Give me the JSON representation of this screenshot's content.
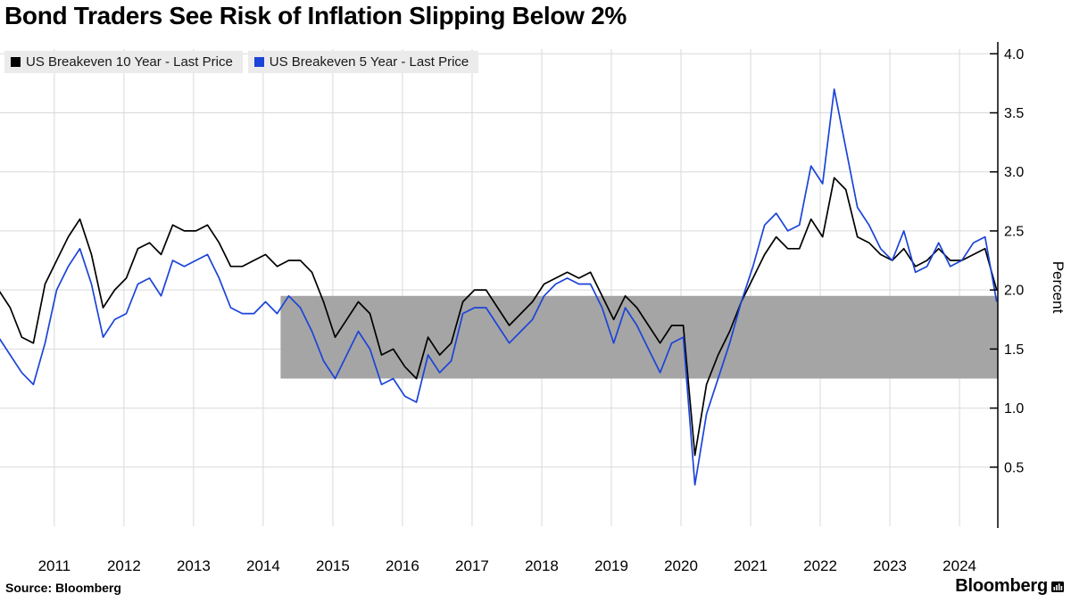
{
  "chart_data": {
    "type": "line",
    "title": "Bond Traders See Risk of Inflation Slipping Below 2%",
    "ylabel": "Percent",
    "source": "Source: Bloomberg",
    "branding": "Bloomberg",
    "legend_position": "top-left",
    "grid": true,
    "x_start": 2010.2,
    "x_step": 0.16667,
    "xlim": [
      2010.22,
      2024.55
    ],
    "ylim": [
      0,
      4.04
    ],
    "x_tick_years": [
      2011,
      2012,
      2013,
      2014,
      2015,
      2016,
      2017,
      2018,
      2019,
      2020,
      2021,
      2022,
      2023,
      2024
    ],
    "y_ticks": [
      0.5,
      1.0,
      1.5,
      2.0,
      2.5,
      3.0,
      3.5,
      4.0
    ],
    "colors": {
      "grid": "#d9d9d9",
      "axis": "#000000",
      "legend_chip_bg": "#ebebeb"
    },
    "band": {
      "label": "sub-2-percent-zone",
      "x0": 2014.25,
      "x1": 2024.55,
      "y0": 1.25,
      "y1": 1.95,
      "color": "#a5a5a5"
    },
    "series": [
      {
        "name": "US Breakeven 10 Year - Last Price",
        "color": "#000000",
        "values": [
          2.0,
          1.85,
          1.6,
          1.55,
          2.05,
          2.25,
          2.45,
          2.6,
          2.3,
          1.85,
          2.0,
          2.1,
          2.35,
          2.4,
          2.3,
          2.55,
          2.5,
          2.5,
          2.55,
          2.4,
          2.2,
          2.2,
          2.25,
          2.3,
          2.2,
          2.25,
          2.25,
          2.15,
          1.9,
          1.6,
          1.75,
          1.9,
          1.8,
          1.45,
          1.5,
          1.35,
          1.25,
          1.6,
          1.45,
          1.55,
          1.9,
          2.0,
          2.0,
          1.85,
          1.7,
          1.8,
          1.9,
          2.05,
          2.1,
          2.15,
          2.1,
          2.15,
          1.95,
          1.75,
          1.95,
          1.85,
          1.7,
          1.55,
          1.7,
          1.7,
          0.6,
          1.2,
          1.45,
          1.65,
          1.9,
          2.1,
          2.3,
          2.45,
          2.35,
          2.35,
          2.6,
          2.45,
          2.95,
          2.85,
          2.45,
          2.4,
          2.3,
          2.25,
          2.35,
          2.2,
          2.25,
          2.35,
          2.25,
          2.25,
          2.3,
          2.35,
          2.0
        ]
      },
      {
        "name": "US Breakeven 5 Year - Last Price",
        "color": "#1b44d8",
        "values": [
          1.6,
          1.45,
          1.3,
          1.2,
          1.55,
          2.0,
          2.2,
          2.35,
          2.05,
          1.6,
          1.75,
          1.8,
          2.05,
          2.1,
          1.95,
          2.25,
          2.2,
          2.25,
          2.3,
          2.1,
          1.85,
          1.8,
          1.8,
          1.9,
          1.8,
          1.95,
          1.85,
          1.65,
          1.4,
          1.25,
          1.45,
          1.65,
          1.5,
          1.2,
          1.25,
          1.1,
          1.05,
          1.45,
          1.3,
          1.4,
          1.8,
          1.85,
          1.85,
          1.7,
          1.55,
          1.65,
          1.75,
          1.95,
          2.05,
          2.1,
          2.05,
          2.05,
          1.85,
          1.55,
          1.85,
          1.7,
          1.5,
          1.3,
          1.55,
          1.6,
          0.35,
          0.95,
          1.25,
          1.55,
          1.9,
          2.2,
          2.55,
          2.65,
          2.5,
          2.55,
          3.05,
          2.9,
          3.7,
          3.2,
          2.7,
          2.55,
          2.35,
          2.25,
          2.5,
          2.15,
          2.2,
          2.4,
          2.2,
          2.25,
          2.4,
          2.45,
          1.9
        ]
      }
    ]
  }
}
